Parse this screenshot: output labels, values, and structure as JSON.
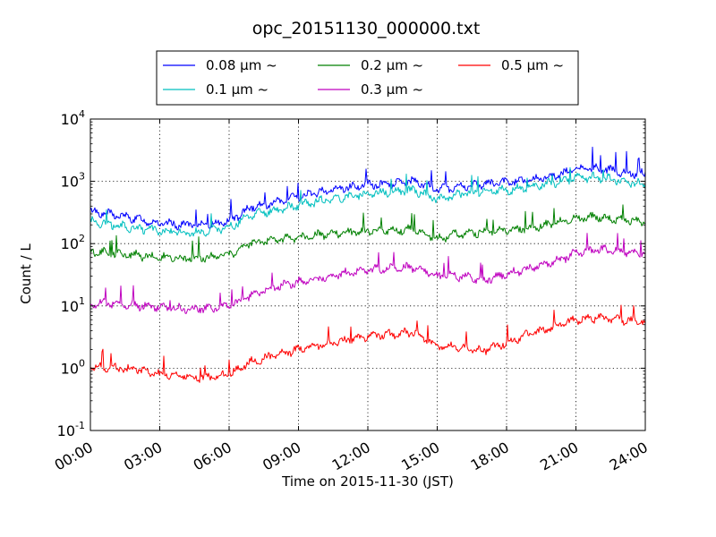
{
  "chart_data": {
    "type": "line",
    "title": "opc_20151130_000000.txt",
    "xlabel": "Time on 2015-11-30 (JST)",
    "ylabel": "Count / L",
    "y_scale": "log",
    "xlim": [
      "2015-11-30 00:00",
      "2015-12-01 00:00"
    ],
    "ylim": [
      0.1,
      10000
    ],
    "grid": true,
    "legend_position": "top-center",
    "x_tick_labels": [
      "00:00",
      "03:00",
      "06:00",
      "09:00",
      "12:00",
      "15:00",
      "18:00",
      "21:00",
      "24:00"
    ],
    "y_ticks": [
      {
        "base": "10",
        "exp": "-1"
      },
      {
        "base": "10",
        "exp": "0"
      },
      {
        "base": "10",
        "exp": "1"
      },
      {
        "base": "10",
        "exp": "2"
      },
      {
        "base": "10",
        "exp": "3"
      },
      {
        "base": "10",
        "exp": "4"
      }
    ],
    "x_hours": [
      0,
      1,
      2,
      3,
      4,
      5,
      6,
      7,
      8,
      9,
      10,
      11,
      12,
      13,
      14,
      15,
      16,
      17,
      18,
      19,
      20,
      21,
      22,
      23,
      24
    ],
    "series": [
      {
        "name": "0.08 μm ~",
        "color": "#0000ff",
        "values": [
          330,
          290,
          250,
          210,
          200,
          200,
          230,
          390,
          450,
          560,
          680,
          790,
          880,
          900,
          1000,
          750,
          820,
          900,
          950,
          1050,
          1200,
          1550,
          1600,
          1400,
          1300
        ]
      },
      {
        "name": "0.1 μm ~",
        "color": "#00bfbf",
        "values": [
          230,
          200,
          175,
          160,
          150,
          155,
          180,
          290,
          340,
          410,
          490,
          560,
          640,
          680,
          720,
          520,
          620,
          680,
          720,
          800,
          950,
          1150,
          1150,
          1000,
          900
        ]
      },
      {
        "name": "0.2 μm ~",
        "color": "#008000",
        "values": [
          75,
          70,
          65,
          60,
          58,
          60,
          68,
          105,
          115,
          125,
          140,
          150,
          160,
          165,
          170,
          120,
          145,
          155,
          165,
          180,
          210,
          260,
          270,
          240,
          220
        ]
      },
      {
        "name": "0.3 μm ~",
        "color": "#bf00bf",
        "values": [
          11,
          11,
          10,
          9.5,
          9,
          9,
          10,
          15,
          20,
          24,
          28,
          33,
          38,
          40,
          42,
          30,
          30,
          26,
          32,
          40,
          50,
          70,
          80,
          75,
          70
        ]
      },
      {
        "name": "0.5 μm ~",
        "color": "#ff0000",
        "values": [
          1.1,
          1.0,
          0.95,
          0.8,
          0.75,
          0.7,
          0.8,
          1.3,
          1.6,
          2.0,
          2.4,
          2.8,
          3.3,
          3.5,
          3.8,
          2.3,
          2.2,
          1.9,
          2.6,
          3.5,
          4.5,
          6.0,
          6.5,
          6.0,
          5.5
        ]
      }
    ]
  }
}
